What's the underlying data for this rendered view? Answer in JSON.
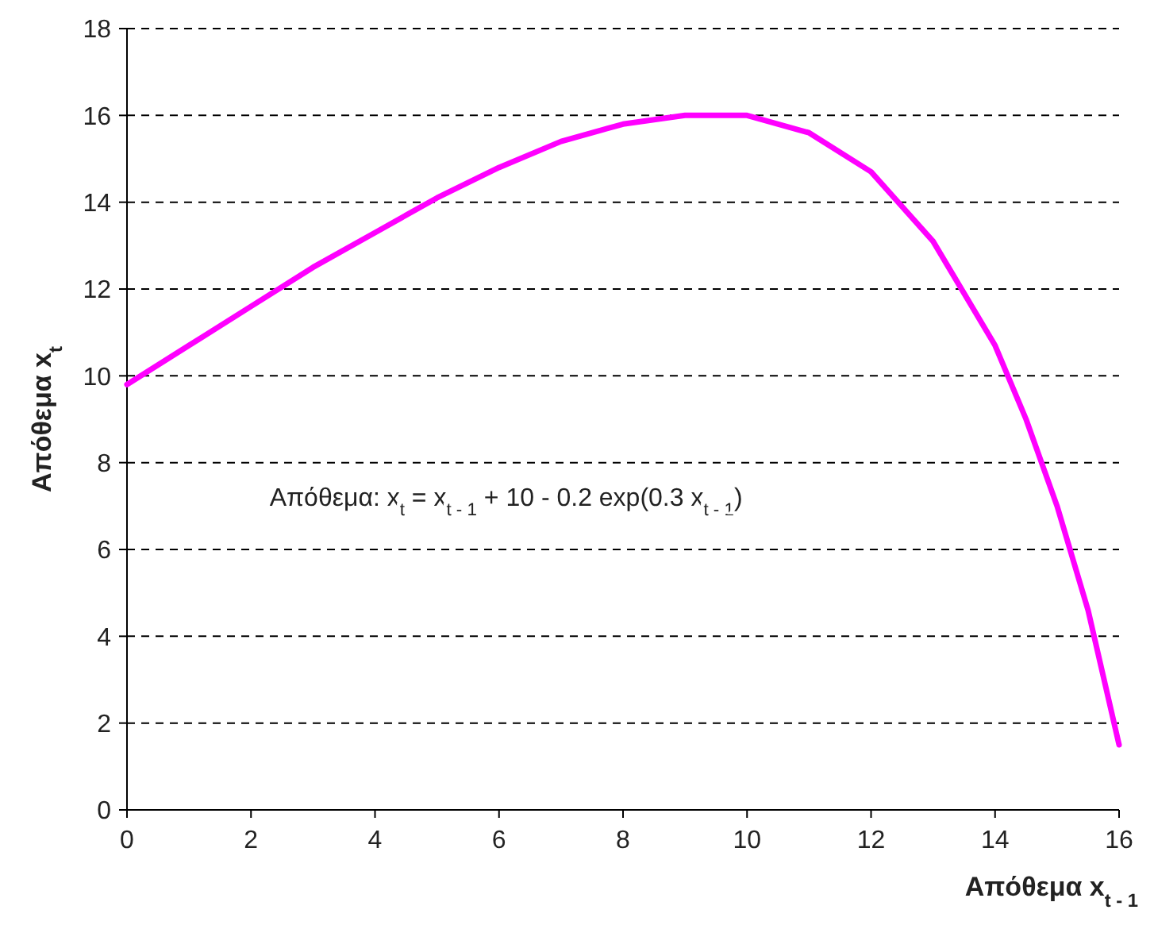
{
  "chart_data": {
    "type": "line",
    "xlabel": "Απόθεμα x$_{t - 1}$",
    "ylabel": "Απόθεμα x$_{t}$",
    "x": [
      0,
      1,
      2,
      3,
      4,
      5,
      6,
      7,
      8,
      9,
      10,
      11,
      12,
      13,
      14,
      14.5,
      15,
      15.5,
      16
    ],
    "series": [
      {
        "color": "#ff00ff",
        "values": [
          9.8,
          10.7,
          11.6,
          12.5,
          13.3,
          14.1,
          14.8,
          15.4,
          15.8,
          16.0,
          16.0,
          15.6,
          14.7,
          13.1,
          10.7,
          9.0,
          7.0,
          4.6,
          1.5
        ]
      }
    ],
    "xlim": [
      0,
      16
    ],
    "xticks": [
      0,
      2,
      4,
      6,
      8,
      10,
      12,
      14,
      16
    ],
    "ylim": [
      0,
      18
    ],
    "yticks": [
      0,
      2,
      4,
      6,
      8,
      10,
      12,
      14,
      16,
      18
    ],
    "grid": "y",
    "marker": "none",
    "line_style": "solid",
    "annotations": [
      "Απόθεμα: x$_{t}$ = x$_{t - 1}$ + 10 - 0.2 exp(0.3 x$_{t - 1}$)"
    ]
  }
}
